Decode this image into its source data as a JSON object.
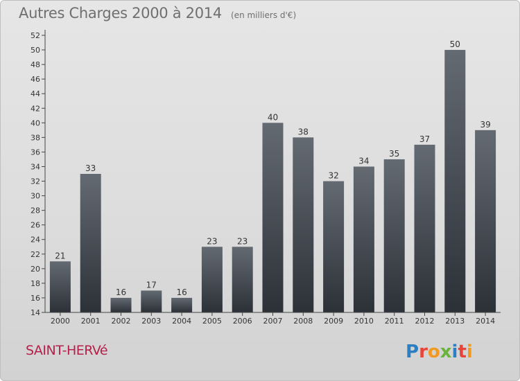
{
  "header": {
    "title": "Autres Charges 2000 à 2014",
    "subtitle": "(en milliers d'€)"
  },
  "footer": {
    "commune": "SAINT-HERVé",
    "logo_text": "Proxiti"
  },
  "colors": {
    "bar_top": "#646a72",
    "bar_bottom": "#2c3138",
    "commune_text": "#b51f4a",
    "axis_text": "#333333"
  },
  "chart_data": {
    "type": "bar",
    "title": "Autres Charges 2000 à 2014",
    "subtitle": "(en milliers d'€)",
    "categories": [
      "2000",
      "2001",
      "2002",
      "2003",
      "2004",
      "2005",
      "2006",
      "2007",
      "2008",
      "2009",
      "2010",
      "2011",
      "2012",
      "2013",
      "2014"
    ],
    "values": [
      21,
      33,
      16,
      17,
      16,
      23,
      23,
      40,
      38,
      32,
      34,
      35,
      37,
      50,
      39
    ],
    "ylim": [
      14,
      52
    ],
    "ytick_step": 2,
    "data_labels": true,
    "grid": false,
    "legend": "none"
  }
}
